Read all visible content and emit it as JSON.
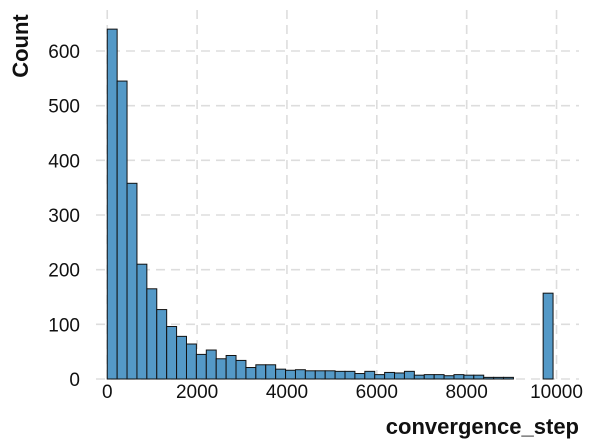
{
  "chart_data": {
    "type": "bar",
    "subtype": "histogram",
    "xlabel": "convergence_step",
    "ylabel": "Count",
    "xlim": [
      -250,
      10500
    ],
    "ylim": [
      0,
      675
    ],
    "xticks": [
      0,
      2000,
      4000,
      6000,
      8000,
      10000
    ],
    "yticks": [
      0,
      100,
      200,
      300,
      400,
      500,
      600
    ],
    "grid": true,
    "bar_color": "#5499c7",
    "bin_width": 220.5,
    "bin_start": 0,
    "counts": [
      640,
      545,
      358,
      210,
      165,
      127,
      96,
      78,
      64,
      45,
      53,
      37,
      43,
      34,
      21,
      26,
      26,
      18,
      16,
      17,
      15,
      15,
      15,
      14,
      14,
      10,
      14,
      8,
      12,
      11,
      14,
      7,
      8,
      8,
      6,
      8,
      7,
      7,
      3,
      3,
      3,
      0,
      0,
      0,
      157
    ]
  }
}
